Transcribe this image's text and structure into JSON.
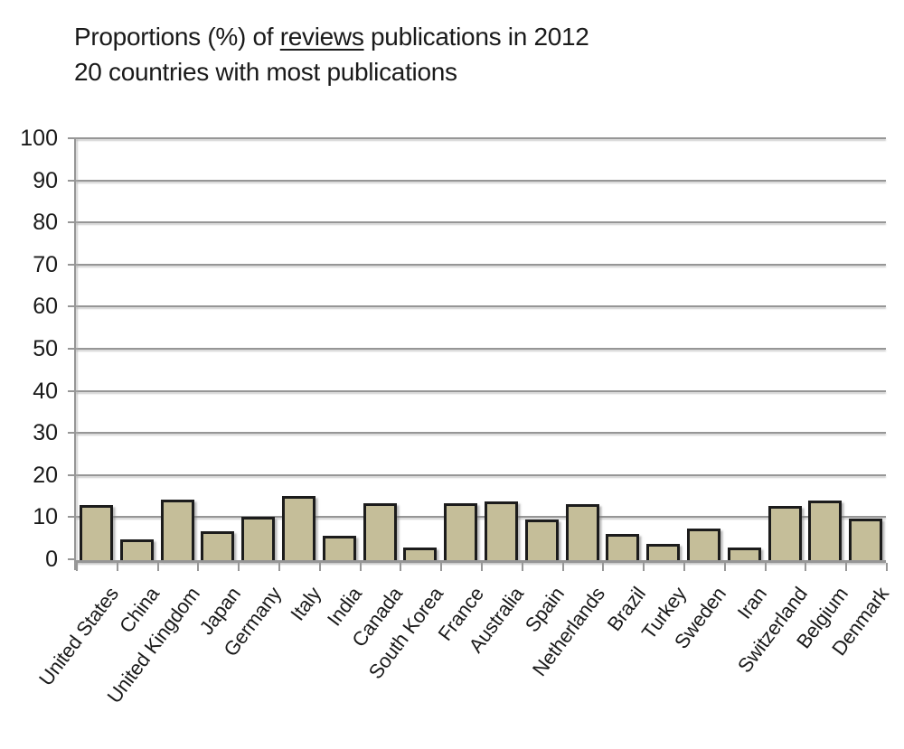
{
  "title": {
    "prefix": "Proportions (%) of ",
    "underlined": "reviews",
    "suffix": " publications in 2012",
    "line2": "20 countries with most publications"
  },
  "chart_data": {
    "type": "bar",
    "title": "Proportions (%) of reviews publications in 2012",
    "subtitle": "20 countries with most publications",
    "categories": [
      "United States",
      "China",
      "United Kingdom",
      "Japan",
      "Germany",
      "Italy",
      "India",
      "Canada",
      "South Korea",
      "France",
      "Australia",
      "Spain",
      "Netherlands",
      "Brazil",
      "Turkey",
      "Sweden",
      "Iran",
      "Switzerland",
      "Belgium",
      "Denmark"
    ],
    "values": [
      13.0,
      4.9,
      14.3,
      6.8,
      10.4,
      15.2,
      5.7,
      13.5,
      3.0,
      13.6,
      14.0,
      9.6,
      13.4,
      6.2,
      3.9,
      7.6,
      3.0,
      12.9,
      14.1,
      9.9
    ],
    "xlabel": "",
    "ylabel": "",
    "ylim": [
      0,
      100
    ],
    "yticks": [
      0,
      10,
      20,
      30,
      40,
      50,
      60,
      70,
      80,
      90,
      100
    ],
    "grid": true,
    "legend": "none",
    "bar_color": "#C5BE99",
    "bar_border_color": "#1C1C1C",
    "axis_color": "#969696",
    "text_color": "#1A1A1A"
  }
}
